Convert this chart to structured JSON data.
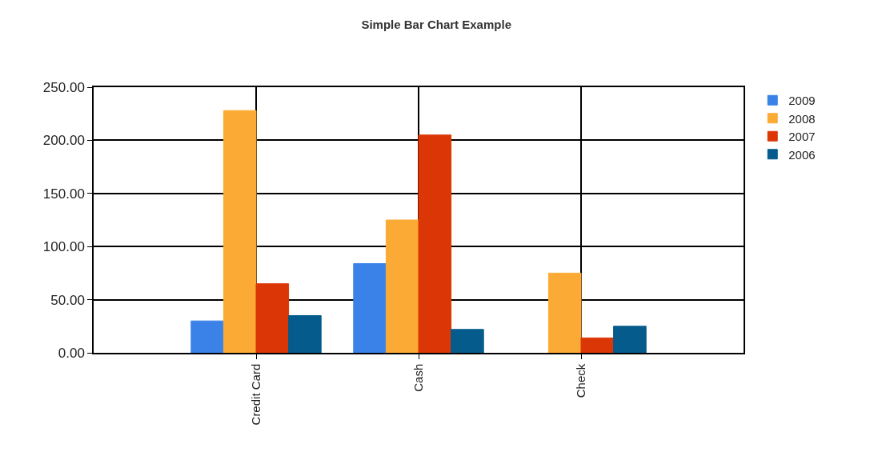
{
  "chart_data": {
    "type": "bar",
    "title": "Simple Bar Chart Example",
    "categories": [
      "Credit Card",
      "Cash",
      "Check"
    ],
    "series": [
      {
        "name": "2009",
        "color": "#3a82e8",
        "values": [
          30,
          84,
          null
        ]
      },
      {
        "name": "2008",
        "color": "#fbab35",
        "values": [
          228,
          125,
          75
        ]
      },
      {
        "name": "2007",
        "color": "#db3706",
        "values": [
          65,
          205,
          14
        ]
      },
      {
        "name": "2006",
        "color": "#045b8c",
        "values": [
          35,
          22,
          25
        ]
      }
    ],
    "ylim": [
      0,
      250
    ],
    "yticks": [
      {
        "value": 0,
        "label": "0.00"
      },
      {
        "value": 50,
        "label": "50.00"
      },
      {
        "value": 100,
        "label": "100.00"
      },
      {
        "value": 150,
        "label": "150.00"
      },
      {
        "value": 200,
        "label": "200.00"
      },
      {
        "value": 250,
        "label": "250.00"
      }
    ],
    "grid": true,
    "legend": "top right"
  }
}
